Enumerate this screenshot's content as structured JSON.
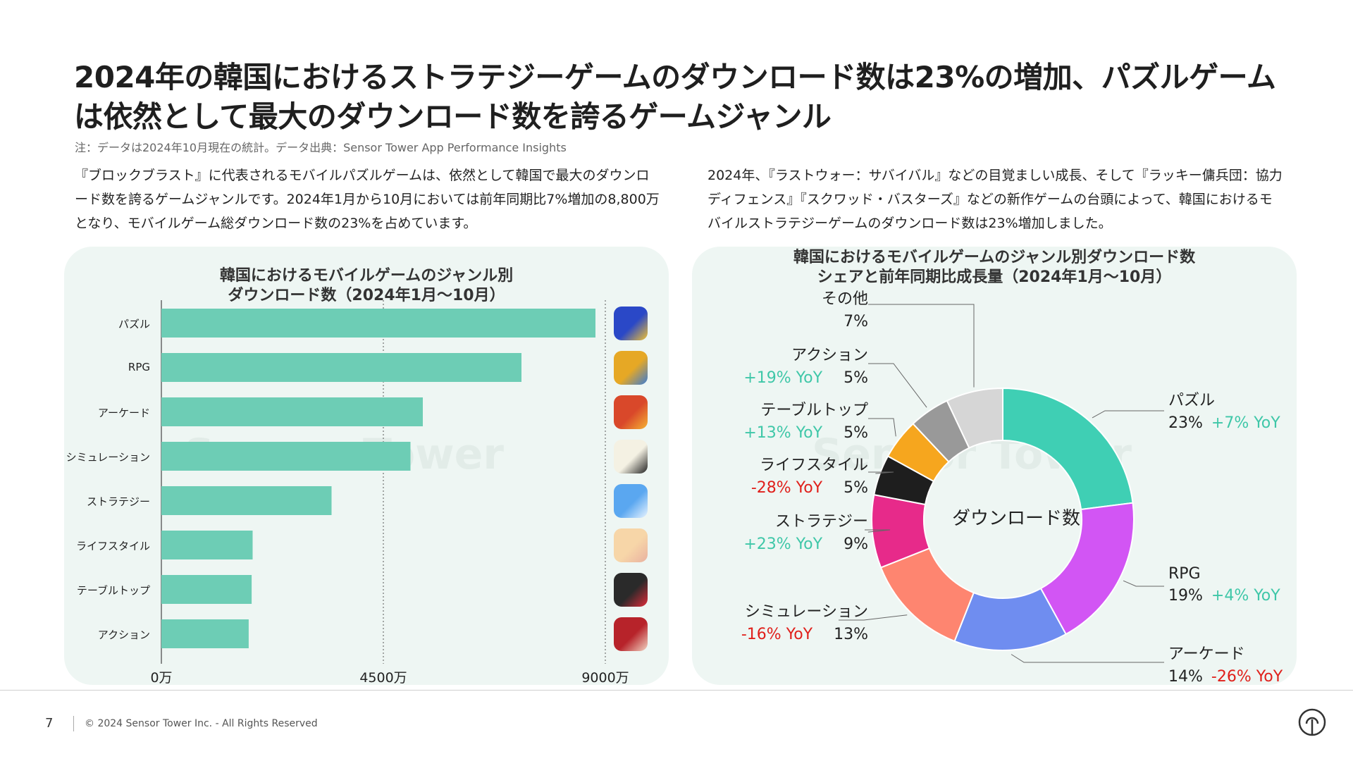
{
  "title": "2024年の韓国におけるストラテジーゲームのダウンロード数は23%の増加、パズルゲームは依然として最大のダウンロード数を誇るゲームジャンル",
  "note": "注：データは2024年10月現在の統計。データ出典：Sensor Tower App Performance Insights",
  "left_text": "『ブロックブラスト』に代表されるモバイルパズルゲームは、依然として韓国で最大のダウンロード数を誇るゲームジャンルです。2024年1月から10月においては前年同期比7%増加の8,800万となり、モバイルゲーム総ダウンロード数の23%を占めています。",
  "right_text": "2024年、『ラストウォー：サバイバル』などの目覚ましい成長、そして『ラッキー傭兵団：協力ディフェンス』『スクワッド・バスターズ』などの新作ゲームの台頭によって、韓国におけるモバイルストラテジーゲームのダウンロード数は23%増加しました。",
  "watermark": "Sensor Tower",
  "footer": {
    "page": "7",
    "copyright": "© 2024 Sensor Tower Inc. - All Rights Reserved"
  },
  "colors": {
    "bar": "#6dcdb5",
    "panel": "#eef6f3",
    "yoy_positive": "#3fc7a8",
    "yoy_negative": "#e0201b"
  },
  "chart_data": [
    {
      "type": "bar",
      "orientation": "horizontal",
      "title_lines": [
        "韓国におけるモバイルゲームのジャンル別",
        "ダウンロード数（2024年1月～10月）"
      ],
      "categories": [
        "パズル",
        "RPG",
        "アーケード",
        "シミュレーション",
        "ストラテジー",
        "ライフスタイル",
        "テーブルトップ",
        "アクション"
      ],
      "values": [
        8800,
        7300,
        5300,
        5050,
        3450,
        1850,
        1830,
        1770
      ],
      "unit": "万",
      "xlim": [
        0,
        9000
      ],
      "xticks": [
        "0万",
        "4500万",
        "9000万"
      ],
      "gridlines": [
        4500,
        9000
      ],
      "app_icons": [
        "block-puzzle-icon",
        "rpg-app-icon",
        "arcade-app-icon",
        "simulation-app-icon",
        "strategy-app-icon",
        "lifestyle-app-icon",
        "tabletop-app-icon",
        "action-app-icon"
      ]
    },
    {
      "type": "pie",
      "donut": true,
      "title_lines": [
        "韓国におけるモバイルゲームのジャンル別ダウンロード数",
        "シェアと前年同期比成長量（2024年1月～10月）"
      ],
      "center_label": "ダウンロード数",
      "slices": [
        {
          "name": "パズル",
          "share": 23,
          "share_label": "23%",
          "yoy": "+7% YoY",
          "yoy_sign": "pos",
          "color": "#3fcfb4"
        },
        {
          "name": "RPG",
          "share": 19,
          "share_label": "19%",
          "yoy": "+4% YoY",
          "yoy_sign": "pos",
          "color": "#d255f4"
        },
        {
          "name": "アーケード",
          "share": 14,
          "share_label": "14%",
          "yoy": "-26% YoY",
          "yoy_sign": "neg",
          "color": "#6f8df0"
        },
        {
          "name": "シミュレーション",
          "share": 13,
          "share_label": "13%",
          "yoy": "-16% YoY",
          "yoy_sign": "neg",
          "color": "#fe8570"
        },
        {
          "name": "ストラテジー",
          "share": 9,
          "share_label": "9%",
          "yoy": "+23% YoY",
          "yoy_sign": "pos",
          "color": "#e72a8a"
        },
        {
          "name": "ライフスタイル",
          "share": 5,
          "share_label": "5%",
          "yoy": "-28% YoY",
          "yoy_sign": "neg",
          "color": "#1e1e1e"
        },
        {
          "name": "テーブルトップ",
          "share": 5,
          "share_label": "5%",
          "yoy": "+13% YoY",
          "yoy_sign": "pos",
          "color": "#f6a61e"
        },
        {
          "name": "アクション",
          "share": 5,
          "share_label": "5%",
          "yoy": "+19% YoY",
          "yoy_sign": "pos",
          "color": "#999999"
        },
        {
          "name": "その他",
          "share": 7,
          "share_label": "7%",
          "yoy": "",
          "yoy_sign": "",
          "color": "#d6d6d6"
        }
      ]
    }
  ]
}
